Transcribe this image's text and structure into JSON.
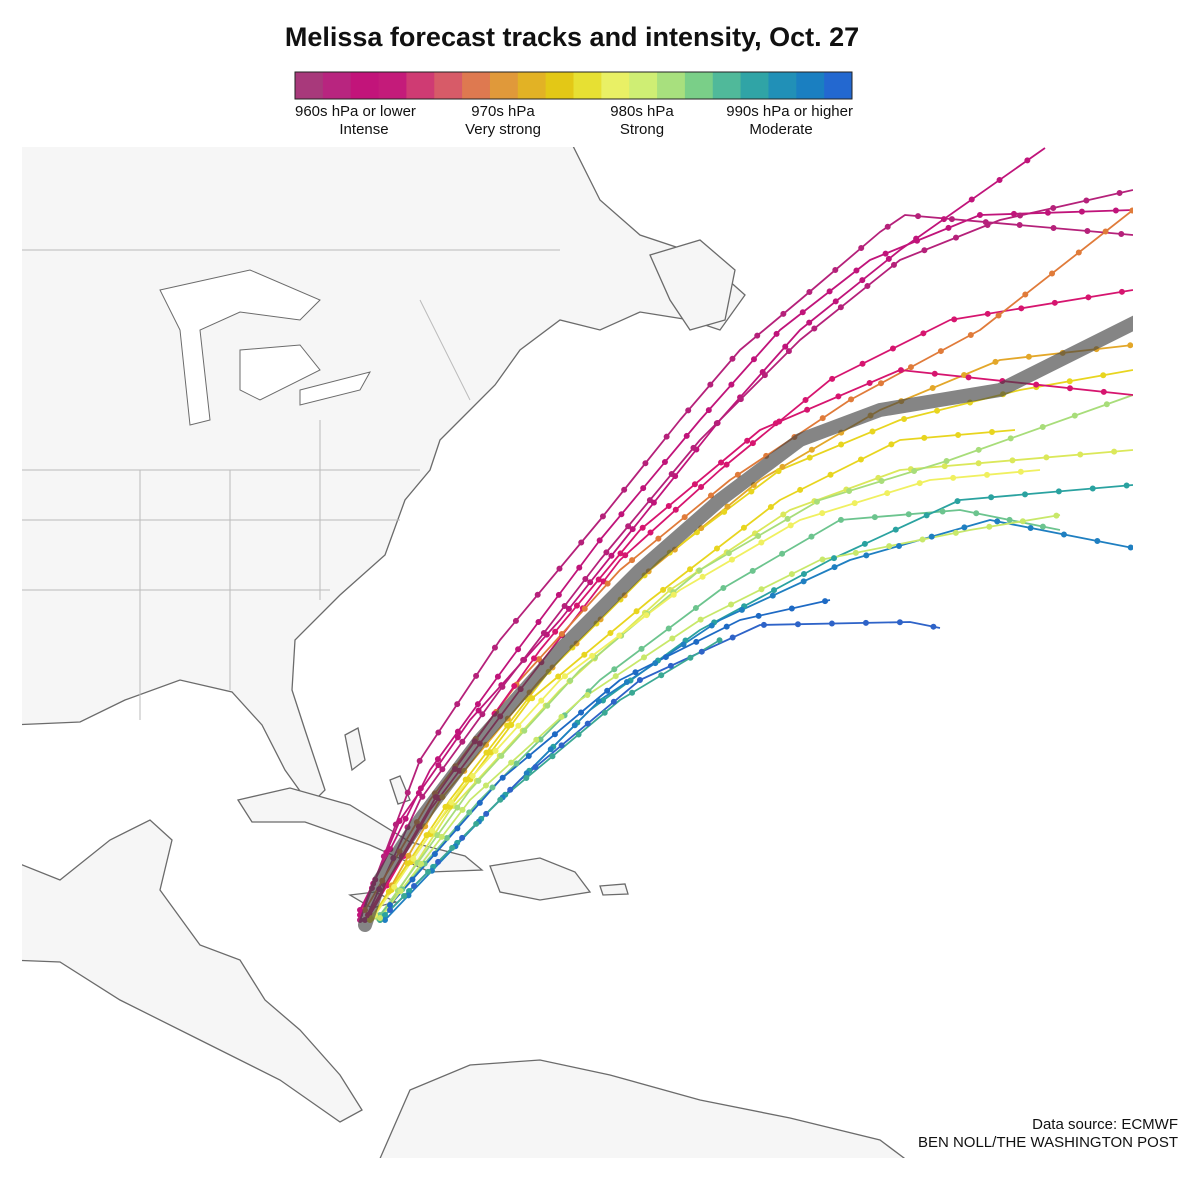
{
  "header": {
    "title": "Melissa forecast tracks and intensity, Oct. 27"
  },
  "legend": {
    "colors": [
      "#a8397b",
      "#b8257f",
      "#c2147a",
      "#c41b7a",
      "#cf3b73",
      "#d75b68",
      "#de7950",
      "#e0993a",
      "#e2b225",
      "#e3c816",
      "#e7e033",
      "#e9f065",
      "#cfee74",
      "#a8e07e",
      "#7acf88",
      "#50b99a",
      "#30a4a6",
      "#2190b7",
      "#1a7fc1",
      "#2368d0"
    ],
    "labels": [
      {
        "pressure": "960s hPa or lower",
        "intensity": "Intense"
      },
      {
        "pressure": "970s hPa",
        "intensity": "Very strong"
      },
      {
        "pressure": "980s hPa",
        "intensity": "Strong"
      },
      {
        "pressure": "990s hPa or higher",
        "intensity": "Moderate"
      }
    ]
  },
  "footer": {
    "source": "Data source: ECMWF",
    "credit": "BEN NOLL/THE WASHINGTON POST"
  }
}
